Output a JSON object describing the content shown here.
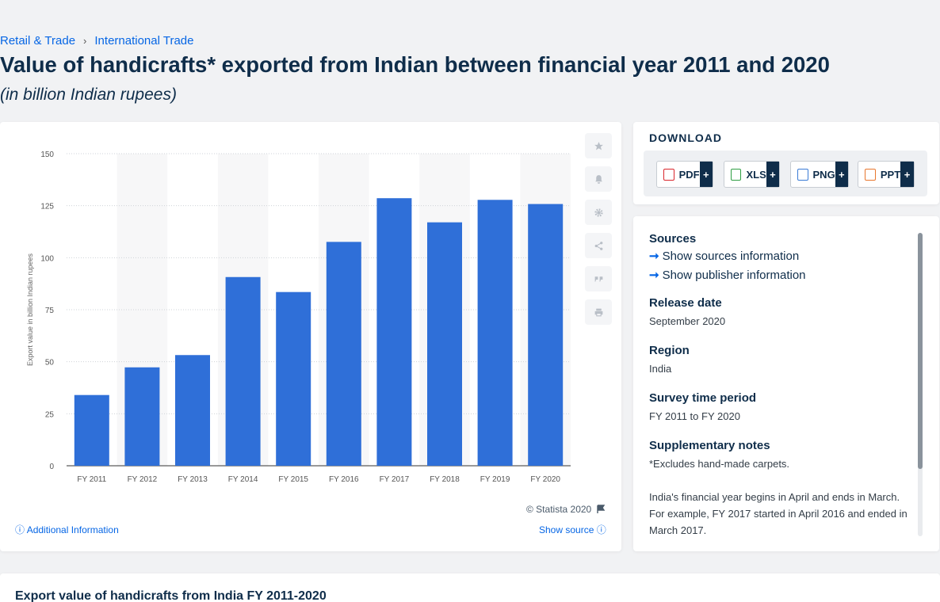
{
  "breadcrumb": {
    "item1": "Retail & Trade",
    "separator": "›",
    "item2": "International Trade"
  },
  "title": "Value of handicrafts* exported from Indian between financial year 2011 and 2020",
  "subtitle": "(in billion Indian rupees)",
  "chart_data": {
    "type": "bar",
    "categories": [
      "FY 2011",
      "FY 2012",
      "FY 2013",
      "FY 2014",
      "FY 2015",
      "FY 2016",
      "FY 2017",
      "FY 2018",
      "FY 2019",
      "FY 2020"
    ],
    "values": [
      34,
      47.3,
      53.2,
      90.7,
      83.5,
      107.6,
      128.6,
      117,
      127.8,
      125.8
    ],
    "ylabel": "Export value in billion Indian rupees",
    "ylim": [
      0,
      150
    ],
    "yticks": [
      0,
      25,
      50,
      75,
      100,
      125,
      150
    ],
    "grid": true,
    "bar_color": "#2f6fd8"
  },
  "chart_footer": {
    "copyright": "© Statista 2020",
    "additional_info": "Additional Information",
    "show_source": "Show source"
  },
  "tools": [
    "star-icon",
    "bell-icon",
    "gear-icon",
    "share-icon",
    "quote-icon",
    "print-icon"
  ],
  "download": {
    "title": "DOWNLOAD",
    "buttons": [
      {
        "label": "PDF",
        "plus": "+",
        "color": "#d9262c"
      },
      {
        "label": "XLS",
        "plus": "+",
        "color": "#2f9e44"
      },
      {
        "label": "PNG",
        "plus": "+",
        "color": "#3a7bd5"
      },
      {
        "label": "PPT",
        "plus": "+",
        "color": "#e8772e"
      }
    ]
  },
  "info": {
    "sources_heading": "Sources",
    "show_sources": "Show sources information",
    "show_publisher": "Show publisher information",
    "release_heading": "Release date",
    "release_value": "September 2020",
    "region_heading": "Region",
    "region_value": "India",
    "survey_heading": "Survey time period",
    "survey_value": "FY 2011 to FY 2020",
    "notes_heading": "Supplementary notes",
    "notes_value1": "*Excludes hand-made carpets.",
    "notes_value2": "India's financial year begins in April and ends in March. For example, FY 2017 started in April 2016 and ended in March 2017."
  },
  "bottom": {
    "title": "Export value of handicrafts from India FY 2011-2020"
  }
}
